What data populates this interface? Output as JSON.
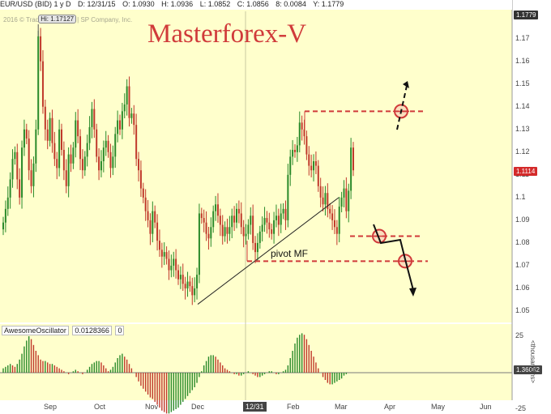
{
  "header": {
    "symbol": "EUR/USD (BID) 1 y D",
    "date": "D: 12/31/15",
    "open": "O: 1.0930",
    "high": "H: 1.0936",
    "low": "L: 1.0852",
    "close": "C: 1.0856",
    "change": "8: 0.0084",
    "year": "Y: 1.1779"
  },
  "copyright": "2016 © TradingView, Inc. | SP Company, Inc.",
  "title": "Masterforex-V",
  "hi_label": "Hi: 1.17127",
  "pivot_label": "pivot MF",
  "osc": {
    "name": "AwesomeOscillator",
    "value": "0.0128366",
    "param": "0",
    "badge": "1.36062",
    "units": "<thousandths>",
    "ticks": [
      "25",
      "-25"
    ]
  },
  "date_badge": "12/31",
  "colors": {
    "background": "#ffffcc",
    "up": "#2a8a2a",
    "down": "#c0392b",
    "annotation": "#d03a3a",
    "price_badge": "#d42a2a"
  },
  "chart_data": {
    "type": "candlestick",
    "title": "Masterforex-V",
    "x": [
      "Sep",
      "Oct",
      "Nov",
      "Dec",
      "12/31",
      "Feb",
      "Mar",
      "Apr",
      "May",
      "Jun"
    ],
    "y_ticks": [
      "1.17",
      "1.16",
      "1.15",
      "1.14",
      "1.13",
      "1.12",
      "1.11",
      "1.1",
      "1.09",
      "1.08",
      "1.07",
      "1.06",
      "1.05"
    ],
    "ylim": [
      1.045,
      1.182
    ],
    "top_badge": "1.1779",
    "current_price": "1.1114",
    "prices": [
      1.089,
      1.095,
      1.1,
      1.108,
      1.117,
      1.12,
      1.108,
      1.1,
      1.122,
      1.13,
      1.126,
      1.112,
      1.105,
      1.115,
      1.13,
      1.171,
      1.16,
      1.14,
      1.13,
      1.125,
      1.135,
      1.124,
      1.117,
      1.113,
      1.13,
      1.121,
      1.112,
      1.105,
      1.119,
      1.115,
      1.122,
      1.134,
      1.127,
      1.117,
      1.112,
      1.118,
      1.124,
      1.131,
      1.139,
      1.13,
      1.118,
      1.112,
      1.116,
      1.122,
      1.125,
      1.12,
      1.113,
      1.118,
      1.128,
      1.134,
      1.13,
      1.138,
      1.141,
      1.149,
      1.135,
      1.137,
      1.132,
      1.117,
      1.112,
      1.104,
      1.1,
      1.094,
      1.09,
      1.084,
      1.094,
      1.089,
      1.081,
      1.077,
      1.074,
      1.076,
      1.073,
      1.068,
      1.07,
      1.073,
      1.068,
      1.064,
      1.066,
      1.062,
      1.06,
      1.063,
      1.061,
      1.057,
      1.06,
      1.066,
      1.093,
      1.091,
      1.089,
      1.084,
      1.082,
      1.087,
      1.094,
      1.097,
      1.092,
      1.088,
      1.083,
      1.087,
      1.084,
      1.087,
      1.092,
      1.089,
      1.095,
      1.093,
      1.087,
      1.083,
      1.084,
      1.088,
      1.092,
      1.08,
      1.076,
      1.08,
      1.085,
      1.088,
      1.091,
      1.089,
      1.086,
      1.084,
      1.09,
      1.092,
      1.088,
      1.093,
      1.095,
      1.09,
      1.11,
      1.118,
      1.121,
      1.12,
      1.123,
      1.133,
      1.13,
      1.127,
      1.119,
      1.114,
      1.112,
      1.116,
      1.114,
      1.105,
      1.1,
      1.097,
      1.102,
      1.095,
      1.093,
      1.09,
      1.087,
      1.084,
      1.096,
      1.1,
      1.104,
      1.094,
      1.103,
      1.122,
      1.112
    ],
    "resistance_level": 1.138,
    "support_level_1": 1.083,
    "pivot_level": 1.072,
    "osc_values": [
      3,
      4,
      5,
      6,
      5,
      4,
      6,
      9,
      13,
      18,
      22,
      25,
      23,
      19,
      15,
      12,
      9,
      8,
      8,
      7,
      6,
      6,
      5,
      4,
      3,
      2,
      1,
      0,
      -1,
      0,
      1,
      2,
      1,
      0,
      -1,
      0,
      2,
      4,
      6,
      7,
      8,
      8,
      7,
      5,
      3,
      1,
      2,
      4,
      7,
      10,
      12,
      13,
      11,
      9,
      6,
      3,
      0,
      -3,
      -6,
      -9,
      -11,
      -13,
      -15,
      -17,
      -18,
      -20,
      -22,
      -24,
      -26,
      -27,
      -28,
      -28,
      -27,
      -26,
      -25,
      -24,
      -22,
      -20,
      -18,
      -16,
      -14,
      -12,
      -10,
      -7,
      -3,
      1,
      5,
      8,
      11,
      12,
      12,
      11,
      9,
      7,
      5,
      3,
      2,
      1,
      0,
      -1,
      -1,
      -2,
      -2,
      -1,
      0,
      1,
      0,
      -1,
      -2,
      -3,
      -3,
      -2,
      -1,
      0,
      1,
      1,
      0,
      -1,
      -1,
      0,
      1,
      2,
      5,
      10,
      15,
      20,
      24,
      26,
      27,
      26,
      23,
      19,
      15,
      11,
      7,
      3,
      0,
      -3,
      -5,
      -7,
      -8,
      -8,
      -7,
      -6,
      -5,
      -4,
      -2,
      -1
    ]
  }
}
